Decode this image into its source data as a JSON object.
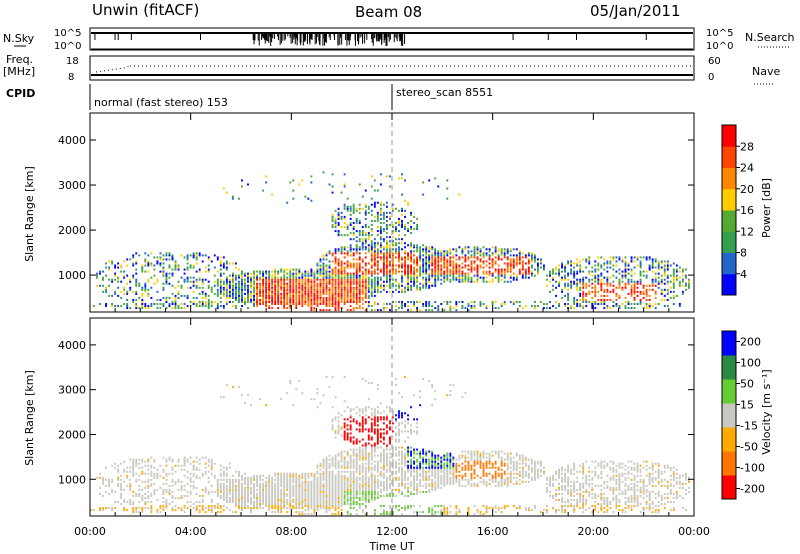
{
  "header": {
    "station": "Unwin (fitACF)",
    "beam": "Beam 08",
    "date": "05/Jan/2011"
  },
  "status_panels": {
    "nsky_label": "N.Sky",
    "nsky_ticks_left": [
      "10^5",
      "10^0"
    ],
    "nsky_ticks_right": [
      "10^5",
      "10^0"
    ],
    "nsearch_label": "N.Search",
    "freq_label_1": "Freq.",
    "freq_label_2": "[MHz]",
    "freq_ticks": [
      "18",
      "8"
    ],
    "nave_label": "Nave",
    "nave_ticks": [
      "60",
      "0"
    ],
    "cpid_label": "CPID",
    "cpid_segments": [
      {
        "label": "normal (fast stereo) 153",
        "start_hour": 0
      },
      {
        "label": "stereo_scan 8551",
        "start_hour": 12
      }
    ]
  },
  "chart_data": [
    {
      "type": "heatmap",
      "panel": "power",
      "ylabel": "Slant Range [km]",
      "ylim": [
        180,
        4600
      ],
      "yticks": [
        "1000",
        "2000",
        "3000",
        "4000"
      ],
      "xlim_hours": [
        0,
        24
      ],
      "colorbar_label": "Power [dB]",
      "colorbar_ticks": [
        "4",
        "8",
        "12",
        "16",
        "20",
        "24",
        "28"
      ],
      "colorbar_range": [
        0,
        32
      ],
      "colors": [
        "#0000ff",
        "#2266cc",
        "#33a050",
        "#55aa33",
        "#ffcc00",
        "#ff8800",
        "#ff4400",
        "#ff0000"
      ]
    },
    {
      "type": "heatmap",
      "panel": "velocity",
      "ylabel": "Slant Range [km]",
      "ylim": [
        180,
        4600
      ],
      "yticks": [
        "1000",
        "2000",
        "3000",
        "4000"
      ],
      "xlim_hours": [
        0,
        24
      ],
      "xlabel": "Time UT",
      "xticks": [
        "00:00",
        "04:00",
        "08:00",
        "12:00",
        "16:00",
        "20:00",
        "00:00"
      ],
      "colorbar_label": "Velocity [m s⁻¹]",
      "colorbar_ticks": [
        "200",
        "100",
        "50",
        "15",
        "-15",
        "-50",
        "-100",
        "-200"
      ],
      "colors": [
        "#0000ff",
        "#2a8a44",
        "#66cc33",
        "#c8c8c0",
        "#ffaa00",
        "#ff7700",
        "#ff0000"
      ]
    }
  ]
}
